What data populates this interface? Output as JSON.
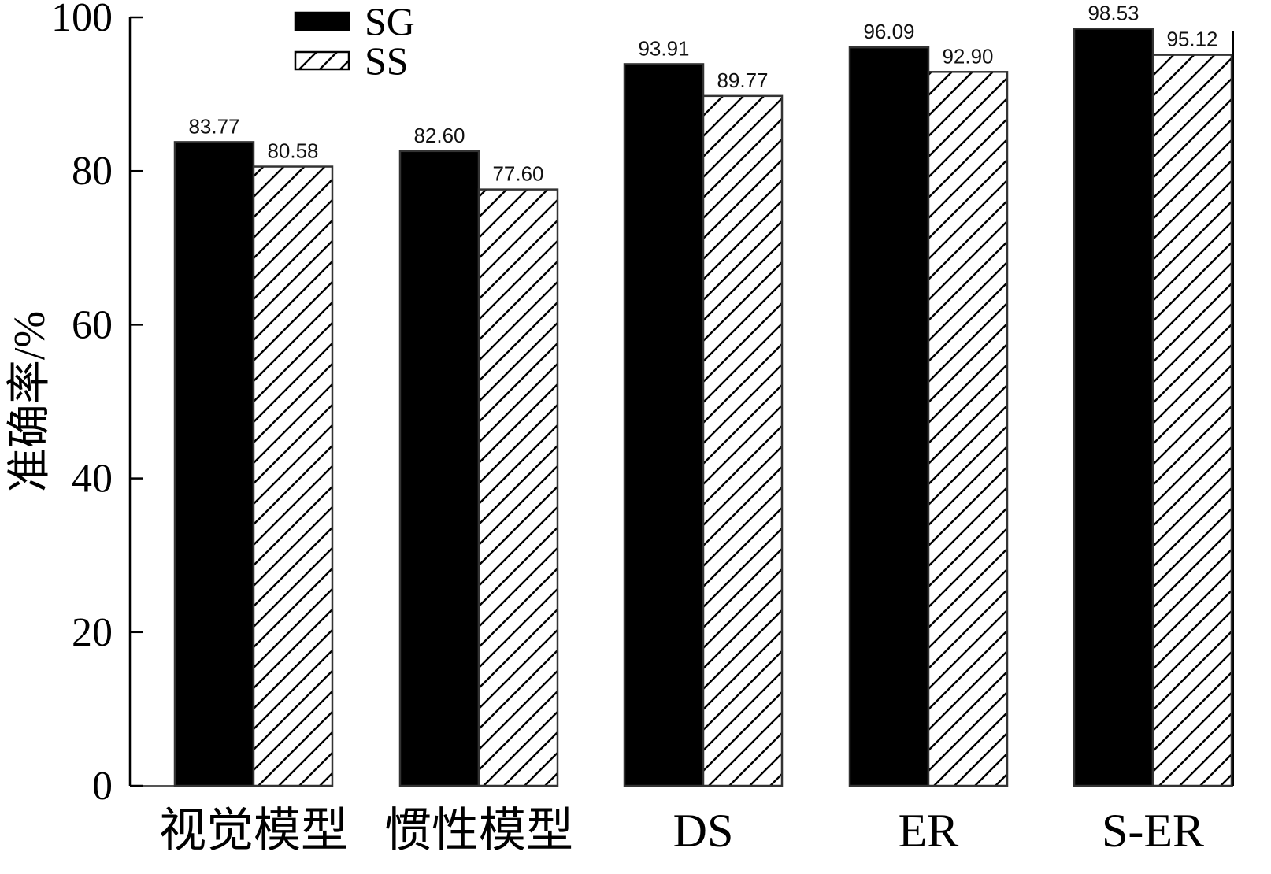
{
  "chart_data": {
    "type": "bar",
    "title": "",
    "xlabel": "",
    "ylabel": "准确率/%",
    "ylim": [
      0,
      100
    ],
    "yticks": [
      0,
      20,
      40,
      60,
      80,
      100
    ],
    "categories": [
      "视觉模型",
      "惯性模型",
      "DS",
      "ER",
      "S-ER"
    ],
    "series": [
      {
        "name": "SG",
        "values": [
          83.77,
          82.6,
          93.91,
          96.09,
          98.53
        ],
        "labels": [
          "83.77",
          "82.60",
          "93.91",
          "96.09",
          "98.53"
        ],
        "fill": "solid",
        "color": "#000000"
      },
      {
        "name": "SS",
        "values": [
          80.58,
          77.6,
          89.77,
          92.9,
          95.12
        ],
        "labels": [
          "80.58",
          "77.60",
          "89.77",
          "92.90",
          "95.12"
        ],
        "fill": "hatched",
        "color": "#000000"
      }
    ],
    "legend": "top-left",
    "grid": false
  }
}
